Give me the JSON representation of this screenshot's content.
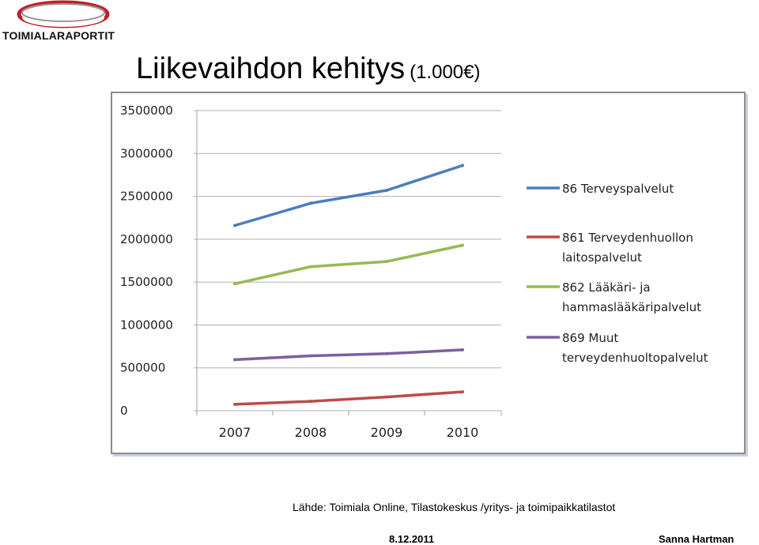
{
  "logo": {
    "text": "TOIMIALARAPORTIT",
    "color": "#c0202a"
  },
  "title": {
    "main": "Liikevaihdon kehitys",
    "unit": "(1.000€)"
  },
  "chart_data": {
    "type": "line",
    "x": [
      "2007",
      "2008",
      "2009",
      "2010"
    ],
    "ylim": [
      0,
      3500000
    ],
    "y_ticks": [
      "0",
      "500000",
      "1000000",
      "1500000",
      "2000000",
      "2500000",
      "3000000",
      "3500000"
    ],
    "grid": true,
    "legend_position": "right",
    "series": [
      {
        "name": "86 Terveyspalvelut",
        "color": "#4a7ebb",
        "values": [
          2160000,
          2420000,
          2570000,
          2860000
        ]
      },
      {
        "name": "861 Terveydenhuollon laitospalvelut",
        "color": "#be4b48",
        "values": [
          75000,
          110000,
          160000,
          220000
        ]
      },
      {
        "name": "862 Lääkäri- ja hammaslääkäripalvelut",
        "color": "#98b954",
        "values": [
          1480000,
          1680000,
          1740000,
          1930000
        ]
      },
      {
        "name": "869 Muut terveydenhuoltopalvelut",
        "color": "#7d60a0",
        "values": [
          595000,
          640000,
          665000,
          710000
        ]
      }
    ]
  },
  "footer": {
    "source": "Lähde: Toimiala Online, Tilastokeskus /yritys- ja toimipaikkatilastot",
    "date": "8.12.2011",
    "author": "Sanna Hartman"
  }
}
